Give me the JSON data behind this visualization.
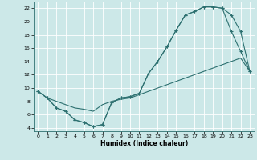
{
  "xlabel": "Humidex (Indice chaleur)",
  "bg_color": "#cce8e8",
  "line_color": "#2d7070",
  "grid_color": "#ffffff",
  "xlim": [
    -0.5,
    23.5
  ],
  "ylim": [
    3.5,
    23.0
  ],
  "xticks": [
    0,
    1,
    2,
    3,
    4,
    5,
    6,
    7,
    8,
    9,
    10,
    11,
    12,
    13,
    14,
    15,
    16,
    17,
    18,
    19,
    20,
    21,
    22,
    23
  ],
  "yticks": [
    4,
    6,
    8,
    10,
    12,
    14,
    16,
    18,
    20,
    22
  ],
  "curve1_x": [
    0,
    1,
    2,
    3,
    4,
    5,
    6,
    7,
    8,
    9,
    10,
    11,
    12,
    13,
    14,
    15,
    16,
    17,
    18,
    19,
    20,
    21,
    22,
    23
  ],
  "curve1_y": [
    9.5,
    8.5,
    7.0,
    6.5,
    5.2,
    4.8,
    4.2,
    4.5,
    7.8,
    8.5,
    8.7,
    9.2,
    12.2,
    14.0,
    16.2,
    18.7,
    21.0,
    21.5,
    22.2,
    22.2,
    22.0,
    21.0,
    18.5,
    12.5
  ],
  "curve2_x": [
    0,
    1,
    2,
    3,
    4,
    5,
    6,
    7,
    8,
    9,
    10,
    11,
    12,
    13,
    14,
    15,
    16,
    17,
    18,
    19,
    20,
    21,
    22,
    23
  ],
  "curve2_y": [
    9.5,
    8.5,
    7.0,
    6.5,
    5.2,
    4.8,
    4.2,
    4.5,
    7.8,
    8.5,
    8.7,
    9.2,
    12.2,
    14.0,
    16.2,
    18.7,
    21.0,
    21.5,
    22.2,
    22.2,
    22.0,
    18.5,
    15.5,
    12.5
  ],
  "curve3_x": [
    0,
    1,
    2,
    3,
    4,
    5,
    6,
    7,
    8,
    9,
    10,
    11,
    12,
    13,
    14,
    15,
    16,
    17,
    18,
    19,
    20,
    21,
    22,
    23
  ],
  "curve3_y": [
    9.5,
    8.5,
    8.0,
    7.5,
    7.0,
    6.8,
    6.5,
    7.5,
    8.0,
    8.3,
    8.5,
    9.0,
    9.5,
    10.0,
    10.5,
    11.0,
    11.5,
    12.0,
    12.5,
    13.0,
    13.5,
    14.0,
    14.5,
    12.5
  ]
}
